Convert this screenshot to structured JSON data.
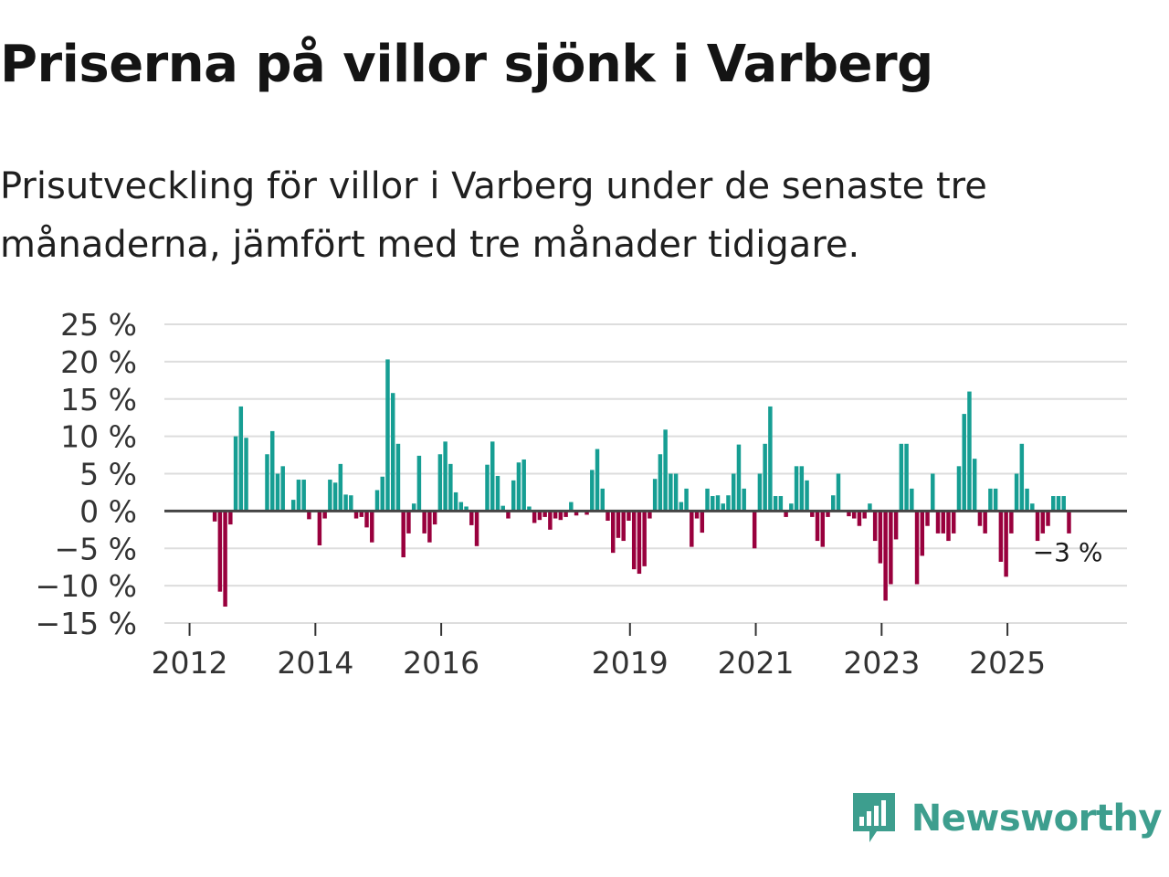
{
  "title": "Priserna på villor sjönk i Varberg",
  "subtitle": "Prisutveckling för villor i Varberg under de senaste tre månaderna, jämfört med tre månader tidigare.",
  "brand": {
    "name": "Newsworthy",
    "icon": "newsworthy-logo-icon"
  },
  "colors": {
    "positive": "#169e93",
    "negative": "#99003d",
    "grid": "#dddddd",
    "zero_line": "#444444",
    "brand": "#3d9e8e"
  },
  "chart_data": {
    "type": "bar",
    "title": "Priserna på villor sjönk i Varberg",
    "xlabel": "",
    "ylabel": "",
    "ylim": [
      -15,
      25
    ],
    "xlim": [
      2011.6,
      2026.9
    ],
    "y_ticks": [
      25,
      20,
      15,
      10,
      5,
      0,
      -5,
      -10,
      -15
    ],
    "y_tick_labels": [
      "25 %",
      "20 %",
      "15 %",
      "10 %",
      "5 %",
      "0 %",
      "−5 %",
      "−10 %",
      "−15 %"
    ],
    "x_ticks": [
      2012,
      2014,
      2016,
      2019,
      2021,
      2023,
      2025
    ],
    "x_tick_labels": [
      "2012",
      "2014",
      "2016",
      "2019",
      "2021",
      "2023",
      "2025"
    ],
    "end_label": "−3 %",
    "start": 2012.4,
    "step": 0.0833,
    "values": [
      -1.4,
      -10.8,
      -12.8,
      -1.8,
      10.0,
      14.0,
      9.8,
      0,
      0,
      0,
      7.6,
      10.7,
      5.0,
      6.0,
      0,
      1.5,
      4.2,
      4.2,
      -1.1,
      0,
      -4.6,
      -1,
      4.2,
      3.8,
      6.3,
      2.2,
      2.1,
      -1,
      -0.8,
      -2.2,
      -4.2,
      2.8,
      4.6,
      20.3,
      15.8,
      9.0,
      -6.2,
      -3.0,
      1.0,
      7.4,
      -3.0,
      -4.2,
      -1.8,
      7.6,
      9.3,
      6.3,
      2.5,
      1.2,
      0.6,
      -1.9,
      -4.7,
      0,
      6.2,
      9.3,
      4.7,
      0.7,
      -1.0,
      4.1,
      6.5,
      6.9,
      0.6,
      -1.6,
      -1.2,
      -0.8,
      -2.5,
      -1.0,
      -1.2,
      -0.8,
      1.2,
      -0.6,
      0,
      -0.5,
      5.5,
      8.3,
      3.0,
      -1.3,
      -5.6,
      -3.6,
      -4.0,
      -1.3,
      -7.8,
      -8.4,
      -7.4,
      -1.0,
      4.3,
      7.6,
      10.9,
      5.0,
      5.0,
      1.2,
      3.0,
      -4.8,
      -1.0,
      -2.9,
      3.0,
      2.0,
      2.1,
      1.0,
      2.1,
      5.0,
      8.9,
      3.0,
      0,
      -5.0,
      5.0,
      9.0,
      14.0,
      2.0,
      2.0,
      -0.8,
      1.0,
      6.0,
      6.0,
      4.1,
      -0.8,
      -4.0,
      -4.8,
      -0.8,
      2.1,
      5.0,
      0,
      -0.7,
      -1.0,
      -2.0,
      -1.0,
      1.0,
      -4.0,
      -7.0,
      -12.0,
      -9.8,
      -3.8,
      9.0,
      9.0,
      3.0,
      -9.8,
      -6.0,
      -2.0,
      5.0,
      -3.0,
      -3.0,
      -4.0,
      -3.0,
      6.0,
      13.0,
      16.0,
      7.0,
      -2.0,
      -3.0,
      3.0,
      3.0,
      -6.8,
      -8.8,
      -3.0,
      5.0,
      9.0,
      3.0,
      1.0,
      -4.0,
      -3.0,
      -2.0,
      2.0,
      2.0,
      2.0,
      -3.0
    ]
  }
}
